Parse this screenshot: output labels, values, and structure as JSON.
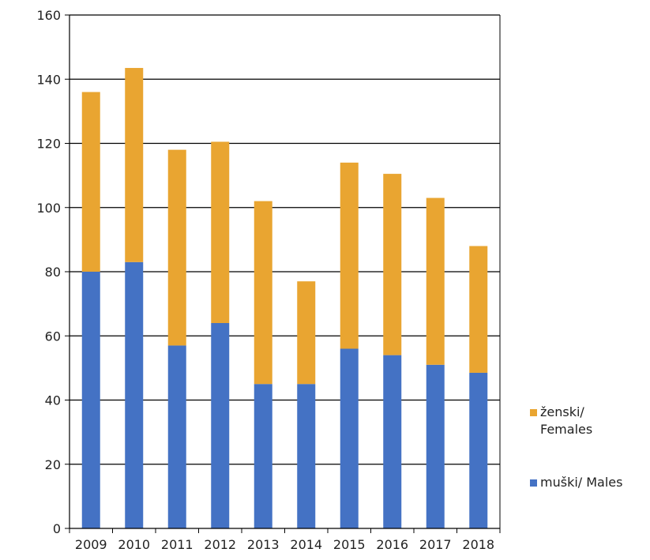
{
  "chart_data": {
    "type": "bar",
    "stacked": true,
    "title": "",
    "xlabel": "",
    "ylabel": "",
    "categories": [
      "2009",
      "2010",
      "2011",
      "2012",
      "2013",
      "2014",
      "2015",
      "2016",
      "2017",
      "2018"
    ],
    "ylim": [
      0,
      160
    ],
    "yticks": [
      "0",
      "20",
      "40",
      "60",
      "80",
      "100",
      "120",
      "140",
      "160"
    ],
    "grid": true,
    "legend_position": "right",
    "series": [
      {
        "name": "muški/ Males",
        "color": "#4472C4",
        "values": [
          80,
          83,
          57,
          64,
          45,
          45,
          56,
          54,
          51,
          48.5
        ]
      },
      {
        "name": "ženski/ Females",
        "color": "#E9A531",
        "values": [
          56,
          60.5,
          61,
          56.5,
          57,
          32,
          58,
          56.5,
          52,
          39.5
        ]
      }
    ]
  }
}
